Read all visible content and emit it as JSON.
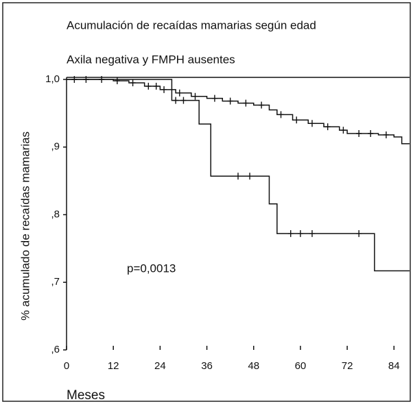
{
  "chart_data": {
    "type": "step",
    "title": "Acumulación de recaídas mamarias según edad",
    "subtitle": "Axila negativa y FMPH ausentes",
    "ylabel": "% acumulado de recaídas mamarias",
    "xlabel": "Meses",
    "annotation": "p=0,0013",
    "xlim": [
      0,
      88
    ],
    "xticks": [
      0,
      12,
      24,
      36,
      48,
      60,
      72,
      84
    ],
    "ylim": [
      0.6,
      1.0
    ],
    "yticks": [
      {
        "value": 1.0,
        "label": "1,0"
      },
      {
        "value": 0.9,
        "label": ",9"
      },
      {
        "value": 0.8,
        "label": ",8"
      },
      {
        "value": 0.7,
        "label": ",7"
      },
      {
        "value": 0.6,
        "label": ",6"
      }
    ],
    "series": [
      {
        "color": "#111111",
        "x": [
          0,
          12,
          16,
          20,
          24,
          28,
          32,
          36,
          40,
          44,
          48,
          52,
          54,
          58,
          62,
          66,
          70,
          72,
          80,
          84,
          86
        ],
        "values": [
          1.0,
          0.998,
          0.995,
          0.99,
          0.985,
          0.98,
          0.975,
          0.972,
          0.968,
          0.965,
          0.962,
          0.955,
          0.948,
          0.94,
          0.935,
          0.93,
          0.925,
          0.92,
          0.918,
          0.915,
          0.905
        ],
        "censored_x": [
          2,
          5,
          9,
          13,
          17,
          21,
          23,
          25,
          29,
          33,
          38,
          42,
          46,
          50,
          55,
          59,
          63,
          67,
          71,
          75,
          78,
          82
        ]
      },
      {
        "color": "#111111",
        "x": [
          0,
          27,
          34,
          37,
          52,
          54,
          79
        ],
        "values": [
          1.0,
          0.969,
          0.934,
          0.857,
          0.816,
          0.772,
          0.717
        ],
        "censored_x": [
          28,
          30,
          44,
          47,
          57.5,
          60,
          63,
          75
        ]
      }
    ]
  }
}
